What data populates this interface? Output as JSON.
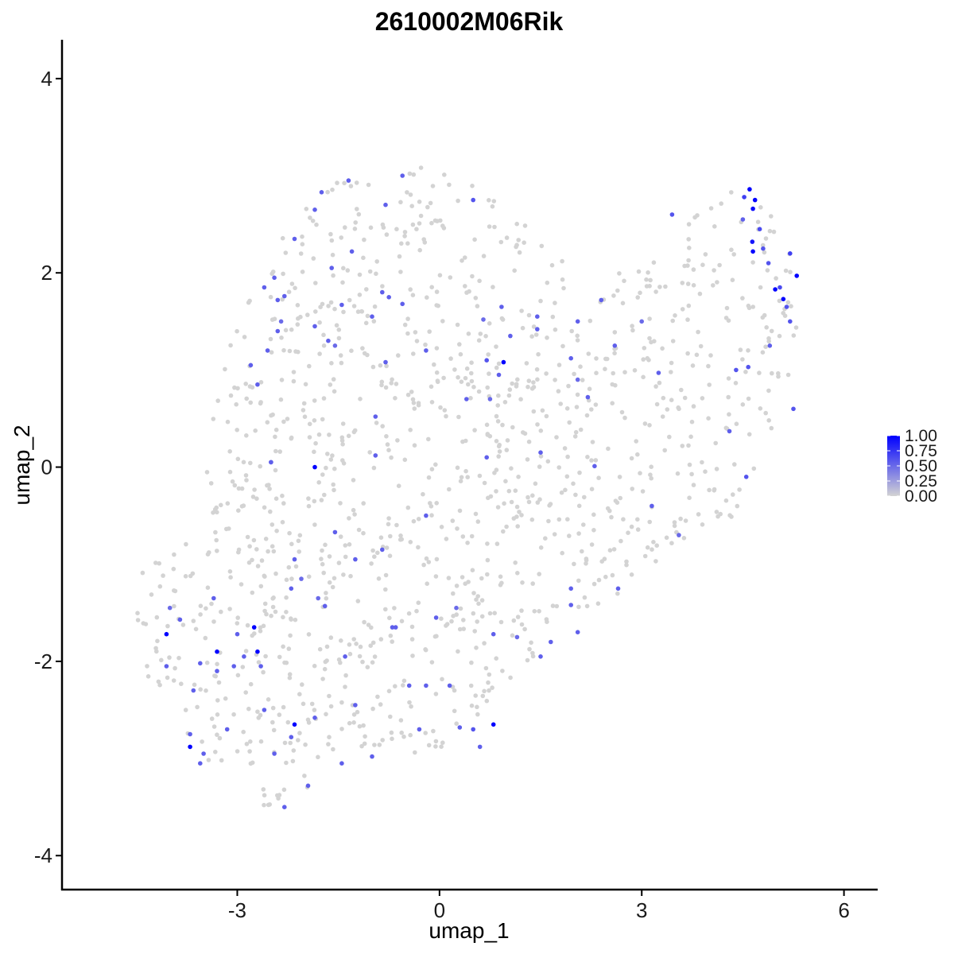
{
  "chart_data": {
    "type": "scatter",
    "title": "2610002M06Rik",
    "xlabel": "umap_1",
    "ylabel": "umap_2",
    "xlim": [
      -5.6,
      6.5
    ],
    "ylim": [
      -4.35,
      4.4
    ],
    "x_ticks": [
      -3,
      0,
      3,
      6
    ],
    "y_ticks": [
      -4,
      -2,
      0,
      2,
      4
    ],
    "x_tick_labels": [
      "-3",
      "0",
      "3",
      "6"
    ],
    "y_tick_labels": [
      "-4",
      "-2",
      "0",
      "2",
      "4"
    ],
    "grid": false,
    "legend": {
      "placement": "right",
      "type": "colorbar",
      "range": [
        0,
        1
      ],
      "ticks": [
        1.0,
        0.75,
        0.5,
        0.25,
        0.0
      ],
      "tick_labels": [
        "1.00",
        "0.75",
        "0.50",
        "0.25",
        "0.00"
      ],
      "low_color": "#d3d3d3",
      "high_color": "#0000ff"
    },
    "background_color": "#d3d3d3",
    "background_point_count": 1250,
    "background_region_polygon": [
      [
        -4.6,
        -1.2
      ],
      [
        -3.6,
        -0.55
      ],
      [
        -3.3,
        0.8
      ],
      [
        -2.9,
        1.75
      ],
      [
        -2.4,
        2.3
      ],
      [
        -2.05,
        2.75
      ],
      [
        -1.3,
        3.05
      ],
      [
        -0.5,
        3.1
      ],
      [
        0.2,
        3.05
      ],
      [
        0.9,
        2.75
      ],
      [
        1.5,
        2.4
      ],
      [
        2.2,
        1.85
      ],
      [
        2.8,
        2.05
      ],
      [
        3.6,
        2.5
      ],
      [
        4.3,
        2.85
      ],
      [
        4.8,
        2.75
      ],
      [
        5.2,
        2.45
      ],
      [
        5.4,
        1.95
      ],
      [
        5.2,
        1.0
      ],
      [
        4.9,
        0.2
      ],
      [
        4.35,
        -0.5
      ],
      [
        3.6,
        -0.95
      ],
      [
        2.8,
        -1.25
      ],
      [
        1.9,
        -1.6
      ],
      [
        1.1,
        -2.2
      ],
      [
        0.5,
        -2.75
      ],
      [
        -0.1,
        -3.0
      ],
      [
        -1.4,
        -3.0
      ],
      [
        -2.2,
        -3.45
      ],
      [
        -2.6,
        -3.5
      ],
      [
        -3.6,
        -3.0
      ],
      [
        -4.2,
        -2.5
      ],
      [
        -4.45,
        -1.8
      ]
    ],
    "points": [
      {
        "x": 4.6,
        "y": 2.86,
        "v": 1.0
      },
      {
        "x": 4.68,
        "y": 2.75,
        "v": 1.0
      },
      {
        "x": 4.65,
        "y": 2.66,
        "v": 0.95
      },
      {
        "x": 4.64,
        "y": 2.32,
        "v": 0.9
      },
      {
        "x": 4.65,
        "y": 2.22,
        "v": 1.0
      },
      {
        "x": 5.3,
        "y": 1.97,
        "v": 1.0
      },
      {
        "x": 4.98,
        "y": 1.83,
        "v": 1.0
      },
      {
        "x": 5.1,
        "y": 1.73,
        "v": 1.0
      },
      {
        "x": 4.52,
        "y": 2.78,
        "v": 0.7
      },
      {
        "x": 4.75,
        "y": 2.45,
        "v": 0.65
      },
      {
        "x": 4.8,
        "y": 2.25,
        "v": 0.6
      },
      {
        "x": 4.88,
        "y": 2.1,
        "v": 0.6
      },
      {
        "x": 5.2,
        "y": 2.2,
        "v": 0.7
      },
      {
        "x": 5.05,
        "y": 1.85,
        "v": 0.65
      },
      {
        "x": 5.15,
        "y": 1.65,
        "v": 0.6
      },
      {
        "x": 5.2,
        "y": 1.5,
        "v": 0.6
      },
      {
        "x": 4.9,
        "y": 1.25,
        "v": 0.55
      },
      {
        "x": 4.58,
        "y": 1.03,
        "v": 0.6
      },
      {
        "x": 4.4,
        "y": 1.0,
        "v": 0.6
      },
      {
        "x": 5.25,
        "y": 0.6,
        "v": 0.6
      },
      {
        "x": 4.3,
        "y": 0.37,
        "v": 0.55
      },
      {
        "x": 4.55,
        "y": -0.1,
        "v": 0.6
      },
      {
        "x": 3.45,
        "y": 2.6,
        "v": 0.6
      },
      {
        "x": 4.5,
        "y": 2.55,
        "v": 0.55
      },
      {
        "x": 0.5,
        "y": 2.75,
        "v": 0.6
      },
      {
        "x": 0.95,
        "y": 1.08,
        "v": 1.0
      },
      {
        "x": 0.7,
        "y": 1.1,
        "v": 0.6
      },
      {
        "x": 0.88,
        "y": 0.95,
        "v": 0.55
      },
      {
        "x": 0.92,
        "y": 1.65,
        "v": 0.55
      },
      {
        "x": 1.05,
        "y": 1.35,
        "v": 0.55
      },
      {
        "x": 0.65,
        "y": 1.52,
        "v": 0.5
      },
      {
        "x": 0.4,
        "y": 0.7,
        "v": 0.55
      },
      {
        "x": 0.75,
        "y": 0.7,
        "v": 0.5
      },
      {
        "x": 0.7,
        "y": 0.1,
        "v": 0.55
      },
      {
        "x": 1.45,
        "y": 1.55,
        "v": 0.55
      },
      {
        "x": 1.45,
        "y": 1.42,
        "v": 0.55
      },
      {
        "x": 1.95,
        "y": 1.12,
        "v": 0.55
      },
      {
        "x": 2.05,
        "y": 0.9,
        "v": 0.5
      },
      {
        "x": 2.2,
        "y": 0.72,
        "v": 0.55
      },
      {
        "x": 2.05,
        "y": 1.5,
        "v": 0.55
      },
      {
        "x": 2.4,
        "y": 1.72,
        "v": 0.55
      },
      {
        "x": 2.6,
        "y": 1.25,
        "v": 0.55
      },
      {
        "x": 3.0,
        "y": 1.5,
        "v": 0.5
      },
      {
        "x": 3.25,
        "y": 0.97,
        "v": 0.55
      },
      {
        "x": 1.5,
        "y": 0.15,
        "v": 0.55
      },
      {
        "x": 2.3,
        "y": 0.01,
        "v": 0.55
      },
      {
        "x": 3.15,
        "y": -0.4,
        "v": 0.55
      },
      {
        "x": 3.55,
        "y": -0.7,
        "v": 0.5
      },
      {
        "x": 2.65,
        "y": -1.25,
        "v": 0.55
      },
      {
        "x": 1.95,
        "y": -1.25,
        "v": 0.55
      },
      {
        "x": 1.95,
        "y": -1.42,
        "v": 0.55
      },
      {
        "x": 2.05,
        "y": -1.7,
        "v": 0.55
      },
      {
        "x": 1.65,
        "y": -1.8,
        "v": 0.55
      },
      {
        "x": 1.5,
        "y": -1.95,
        "v": 0.55
      },
      {
        "x": 0.8,
        "y": -1.72,
        "v": 0.55
      },
      {
        "x": 0.8,
        "y": -2.65,
        "v": 1.0
      },
      {
        "x": 0.5,
        "y": -2.7,
        "v": 0.6
      },
      {
        "x": 0.3,
        "y": -2.68,
        "v": 0.55
      },
      {
        "x": 0.6,
        "y": -2.88,
        "v": 0.55
      },
      {
        "x": 0.15,
        "y": -2.25,
        "v": 0.55
      },
      {
        "x": -0.2,
        "y": -2.25,
        "v": 0.55
      },
      {
        "x": -0.45,
        "y": -2.25,
        "v": 0.55
      },
      {
        "x": -0.3,
        "y": -2.7,
        "v": 0.55
      },
      {
        "x": -0.05,
        "y": -1.55,
        "v": 0.55
      },
      {
        "x": 0.25,
        "y": -1.45,
        "v": 0.5
      },
      {
        "x": -0.65,
        "y": -1.65,
        "v": 0.55
      },
      {
        "x": -0.85,
        "y": -0.85,
        "v": 0.55
      },
      {
        "x": -1.4,
        "y": -1.95,
        "v": 0.55
      },
      {
        "x": -1.25,
        "y": -2.45,
        "v": 0.55
      },
      {
        "x": -1.0,
        "y": -2.98,
        "v": 0.55
      },
      {
        "x": -1.45,
        "y": -3.05,
        "v": 0.55
      },
      {
        "x": -1.85,
        "y": -2.58,
        "v": 0.55
      },
      {
        "x": -1.7,
        "y": -1.43,
        "v": 0.55
      },
      {
        "x": -1.8,
        "y": -1.35,
        "v": 0.5
      },
      {
        "x": -1.55,
        "y": -0.67,
        "v": 0.55
      },
      {
        "x": -1.85,
        "y": 0.0,
        "v": 1.0
      },
      {
        "x": -2.5,
        "y": 0.05,
        "v": 0.55
      },
      {
        "x": -2.15,
        "y": -0.95,
        "v": 0.55
      },
      {
        "x": -2.2,
        "y": -1.25,
        "v": 0.55
      },
      {
        "x": -2.05,
        "y": -1.15,
        "v": 0.5
      },
      {
        "x": -2.15,
        "y": -2.65,
        "v": 1.0
      },
      {
        "x": -2.2,
        "y": -2.78,
        "v": 0.55
      },
      {
        "x": -2.45,
        "y": -2.95,
        "v": 0.55
      },
      {
        "x": -1.95,
        "y": -3.28,
        "v": 0.55
      },
      {
        "x": -2.3,
        "y": -3.5,
        "v": 0.55
      },
      {
        "x": -2.6,
        "y": -2.5,
        "v": 0.55
      },
      {
        "x": -2.7,
        "y": -1.9,
        "v": 1.0
      },
      {
        "x": -2.75,
        "y": -1.65,
        "v": 1.0
      },
      {
        "x": -3.3,
        "y": -1.9,
        "v": 1.0
      },
      {
        "x": -3.0,
        "y": -1.72,
        "v": 0.55
      },
      {
        "x": -2.65,
        "y": -2.05,
        "v": 0.55
      },
      {
        "x": -2.9,
        "y": -1.95,
        "v": 0.55
      },
      {
        "x": -3.05,
        "y": -2.05,
        "v": 0.55
      },
      {
        "x": -3.3,
        "y": -2.1,
        "v": 0.55
      },
      {
        "x": -3.55,
        "y": -2.02,
        "v": 0.55
      },
      {
        "x": -3.65,
        "y": -2.3,
        "v": 0.55
      },
      {
        "x": -3.15,
        "y": -2.7,
        "v": 0.55
      },
      {
        "x": -3.35,
        "y": -1.35,
        "v": 0.55
      },
      {
        "x": -3.85,
        "y": -1.57,
        "v": 0.55
      },
      {
        "x": -4.05,
        "y": -1.72,
        "v": 1.0
      },
      {
        "x": -4.05,
        "y": -2.05,
        "v": 0.55
      },
      {
        "x": -3.7,
        "y": -2.75,
        "v": 0.55
      },
      {
        "x": -3.7,
        "y": -2.88,
        "v": 1.0
      },
      {
        "x": -3.5,
        "y": -2.95,
        "v": 0.55
      },
      {
        "x": -3.55,
        "y": -3.05,
        "v": 0.55
      },
      {
        "x": -4.0,
        "y": -1.45,
        "v": 0.5
      },
      {
        "x": -2.5,
        "y": 0.05,
        "v": 0.55
      },
      {
        "x": -2.8,
        "y": 1.05,
        "v": 0.55
      },
      {
        "x": -2.7,
        "y": 0.85,
        "v": 0.55
      },
      {
        "x": -2.55,
        "y": 1.2,
        "v": 0.55
      },
      {
        "x": -2.4,
        "y": 1.4,
        "v": 0.55
      },
      {
        "x": -2.35,
        "y": 1.5,
        "v": 0.5
      },
      {
        "x": -2.4,
        "y": 1.72,
        "v": 0.55
      },
      {
        "x": -2.3,
        "y": 1.76,
        "v": 0.55
      },
      {
        "x": -2.6,
        "y": 1.85,
        "v": 0.55
      },
      {
        "x": -2.45,
        "y": 1.95,
        "v": 0.55
      },
      {
        "x": -2.15,
        "y": 2.35,
        "v": 0.55
      },
      {
        "x": -1.85,
        "y": 2.65,
        "v": 0.55
      },
      {
        "x": -1.75,
        "y": 2.83,
        "v": 0.55
      },
      {
        "x": -1.35,
        "y": 2.95,
        "v": 0.55
      },
      {
        "x": -0.8,
        "y": 2.7,
        "v": 0.55
      },
      {
        "x": -0.55,
        "y": 3.0,
        "v": 0.55
      },
      {
        "x": -1.6,
        "y": 2.05,
        "v": 0.55
      },
      {
        "x": -1.3,
        "y": 2.22,
        "v": 0.55
      },
      {
        "x": -1.45,
        "y": 1.67,
        "v": 0.55
      },
      {
        "x": -0.85,
        "y": 1.8,
        "v": 0.55
      },
      {
        "x": -0.75,
        "y": 1.75,
        "v": 0.55
      },
      {
        "x": -0.55,
        "y": 1.68,
        "v": 0.55
      },
      {
        "x": -1.0,
        "y": 1.55,
        "v": 0.55
      },
      {
        "x": -1.85,
        "y": 1.45,
        "v": 0.55
      },
      {
        "x": -1.65,
        "y": 1.3,
        "v": 0.55
      },
      {
        "x": -1.55,
        "y": 1.25,
        "v": 0.5
      },
      {
        "x": -0.8,
        "y": 1.08,
        "v": 0.55
      },
      {
        "x": -0.95,
        "y": 0.52,
        "v": 0.55
      },
      {
        "x": -0.95,
        "y": 0.12,
        "v": 0.55
      },
      {
        "x": -0.2,
        "y": 1.2,
        "v": 0.55
      },
      {
        "x": -0.2,
        "y": -0.5,
        "v": 0.55
      },
      {
        "x": -1.25,
        "y": -0.95,
        "v": 0.55
      },
      {
        "x": -0.7,
        "y": -1.65,
        "v": 0.55
      },
      {
        "x": 1.15,
        "y": -1.75,
        "v": 0.5
      }
    ]
  }
}
